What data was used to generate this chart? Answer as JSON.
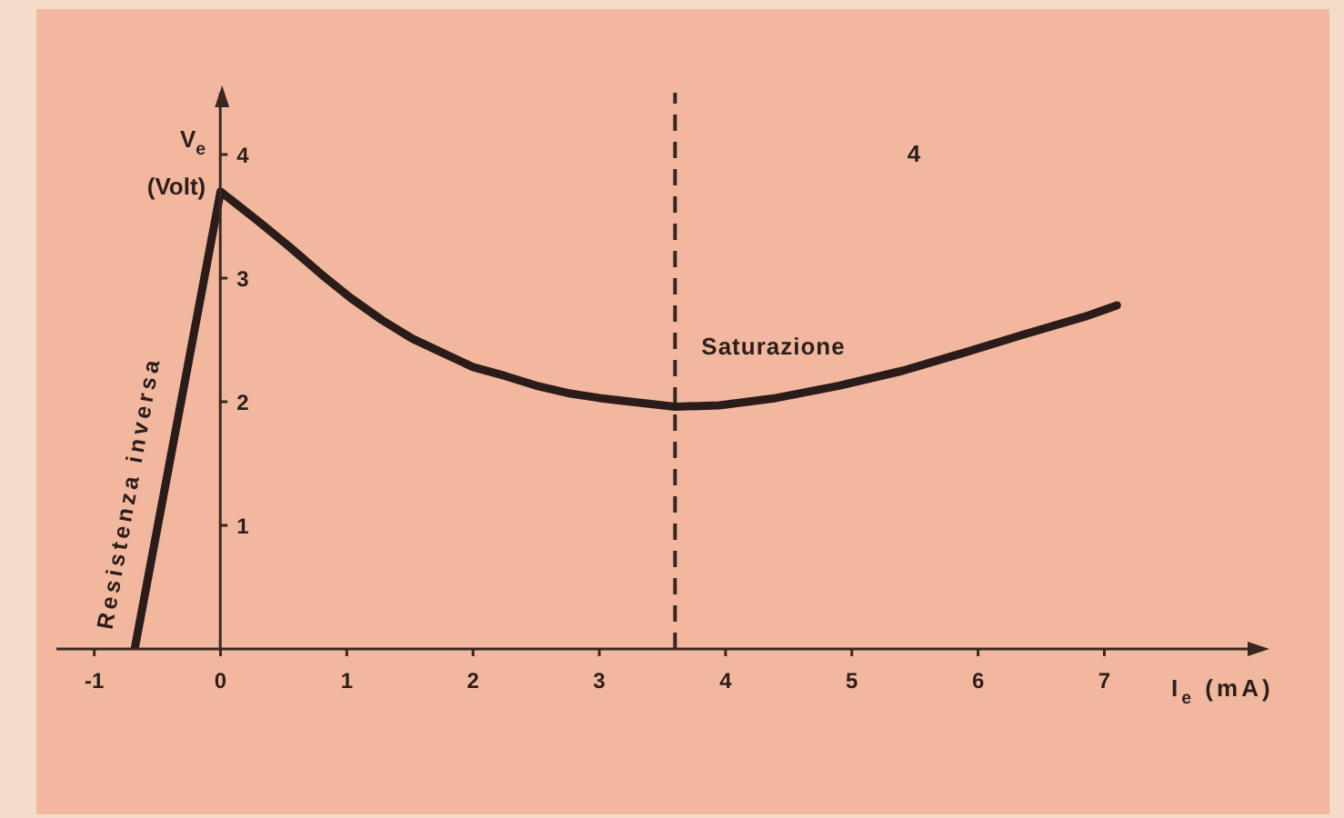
{
  "chart_data": {
    "type": "line",
    "xlabel": "I$_{e}$ (mA)",
    "ylabel": "V$_{e}$ (Volt)",
    "annotations": [
      "4",
      {
        "text": "Resistenza inversa",
        "x": -0.45,
        "y": 1.26
      }
    ],
    "x": [
      -0.68,
      0,
      0.3,
      0.55,
      0.8,
      1.03,
      1.28,
      1.52,
      1.75,
      2.0,
      2.25,
      2.5,
      2.75,
      3.0,
      3.25,
      3.6,
      3.95,
      4.4,
      4.9,
      5.4,
      5.9,
      6.35,
      6.85,
      7.1
    ],
    "series": [
      {
        "color": "#2b1c19",
        "values": [
          0,
          3.7,
          3.46,
          3.25,
          3.03,
          2.84,
          2.66,
          2.51,
          2.4,
          2.28,
          2.21,
          2.13,
          2.07,
          2.03,
          2.0,
          1.96,
          1.97,
          2.03,
          2.13,
          2.25,
          2.4,
          2.54,
          2.69,
          2.78
        ]
      }
    ],
    "xlim": [
      -1.3,
      8.25
    ],
    "ylim": [
      0,
      4.5
    ],
    "xticks": [
      -1,
      0,
      1,
      2,
      3,
      4,
      5,
      6,
      7
    ],
    "yticks": [
      1,
      2,
      3,
      4
    ],
    "ref_lines": [
      {
        "axis": "x",
        "value": 3.6,
        "label": "Saturazione",
        "line_style": "dashed",
        "color": "#3a2520"
      }
    ],
    "marker": "none",
    "line_style": "solid"
  }
}
